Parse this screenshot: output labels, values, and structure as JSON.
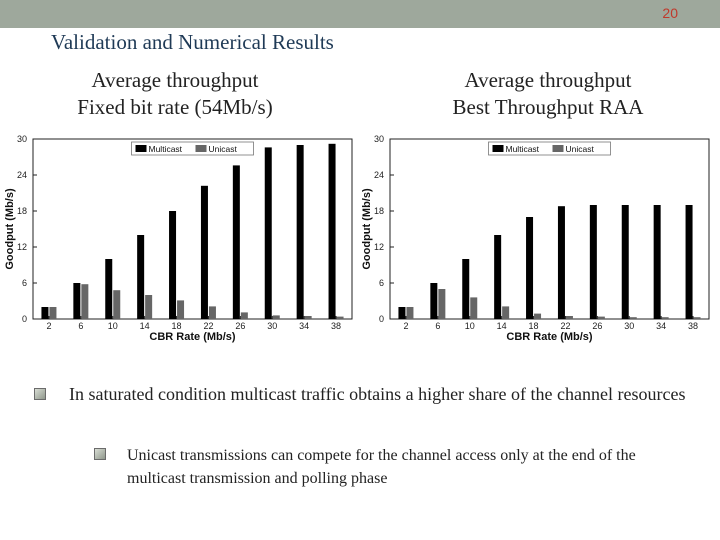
{
  "slide": {
    "page_number": "20",
    "title": "Validation and Numerical Results",
    "left_subtitle": [
      "Average throughput",
      "Fixed bit rate (54Mb/s)"
    ],
    "right_subtitle": [
      "Average throughput",
      "Best Throughput RAA"
    ],
    "bullets": [
      "In saturated condition multicast traffic obtains a higher share of the channel resources",
      "Unicast transmissions can compete for the channel access only at the end of the multicast transmission and polling phase"
    ]
  },
  "chart_data": [
    {
      "type": "bar",
      "title": "",
      "xlabel": "CBR Rate (Mb/s)",
      "ylabel": "Goodput (Mb/s)",
      "ylim": [
        0,
        30
      ],
      "yticks": [
        "0",
        "6",
        "12",
        "18",
        "24",
        "30"
      ],
      "categories": [
        "2",
        "6",
        "10",
        "14",
        "18",
        "22",
        "26",
        "30",
        "34",
        "38"
      ],
      "legend_position": "top-center",
      "series": [
        {
          "name": "Multicast",
          "color": "#000000",
          "values": [
            2,
            6,
            10,
            14,
            18,
            22.2,
            25.6,
            28.6,
            29,
            29.2
          ]
        },
        {
          "name": "Unicast",
          "color": "#666666",
          "values": [
            2,
            5.8,
            4.8,
            4,
            3.1,
            2.1,
            1.1,
            0.6,
            0.5,
            0.4
          ]
        }
      ]
    },
    {
      "type": "bar",
      "title": "",
      "xlabel": "CBR Rate (Mb/s)",
      "ylabel": "Goodput (Mb/s)",
      "ylim": [
        0,
        30
      ],
      "yticks": [
        "0",
        "6",
        "12",
        "18",
        "24",
        "30"
      ],
      "categories": [
        "2",
        "6",
        "10",
        "14",
        "18",
        "22",
        "26",
        "30",
        "34",
        "38"
      ],
      "legend_position": "top-center",
      "series": [
        {
          "name": "Multicast",
          "color": "#000000",
          "values": [
            2,
            6,
            10,
            14,
            17,
            18.8,
            19,
            19,
            19,
            19
          ]
        },
        {
          "name": "Unicast",
          "color": "#666666",
          "values": [
            2,
            5,
            3.6,
            2.1,
            0.9,
            0.5,
            0.4,
            0.3,
            0.3,
            0.3
          ]
        }
      ]
    }
  ]
}
